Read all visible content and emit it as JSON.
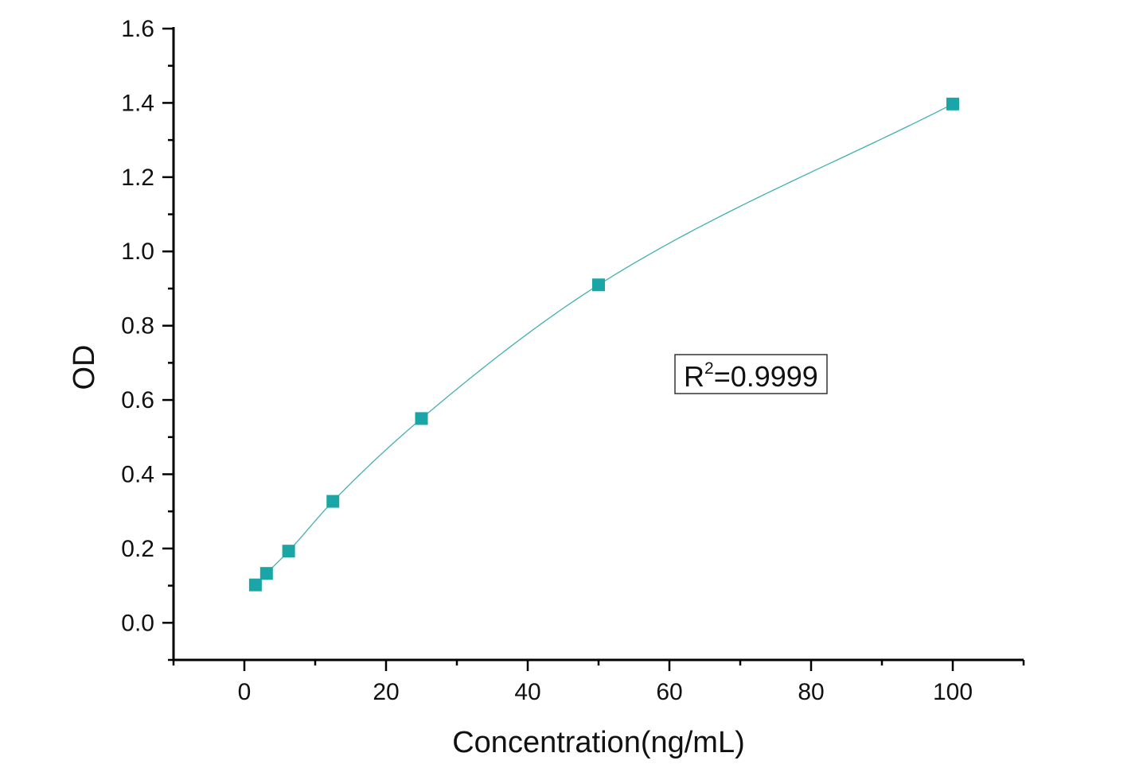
{
  "chart_data": {
    "type": "scatter",
    "title": "",
    "xlabel": "Concentration(ng/mL)",
    "ylabel": "OD",
    "xlim": [
      -10,
      110
    ],
    "ylim": [
      -0.1,
      1.6
    ],
    "xticks": [
      0,
      20,
      40,
      60,
      80,
      100
    ],
    "xtick_labels": [
      "0",
      "20",
      "40",
      "60",
      "80",
      "100"
    ],
    "yticks": [
      0.0,
      0.2,
      0.4,
      0.6,
      0.8,
      1.0,
      1.2,
      1.4,
      1.6
    ],
    "ytick_labels": [
      "0.0",
      "0.2",
      "0.4",
      "0.6",
      "0.8",
      "1.0",
      "1.2",
      "1.4",
      "1.6"
    ],
    "grid": false,
    "series": [
      {
        "x": [
          1.5625,
          3.125,
          6.25,
          12.5,
          25,
          50,
          100
        ],
        "y": [
          0.102,
          0.133,
          0.193,
          0.327,
          0.55,
          0.91,
          1.397
        ],
        "marker": "square",
        "fit": "curve"
      }
    ],
    "annotations": [
      {
        "label": "R",
        "superscript": "2",
        "value": "=0.9999",
        "position": "right-middle"
      }
    ],
    "color": "#1aa6a6",
    "line_color": "#45b0b0"
  }
}
